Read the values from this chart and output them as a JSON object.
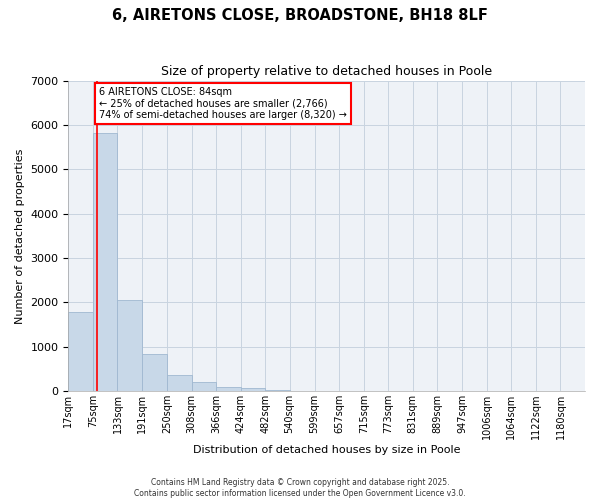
{
  "title": "6, AIRETONS CLOSE, BROADSTONE, BH18 8LF",
  "subtitle": "Size of property relative to detached houses in Poole",
  "xlabel": "Distribution of detached houses by size in Poole",
  "ylabel": "Number of detached properties",
  "bar_labels": [
    "17sqm",
    "75sqm",
    "133sqm",
    "191sqm",
    "250sqm",
    "308sqm",
    "366sqm",
    "424sqm",
    "482sqm",
    "540sqm",
    "599sqm",
    "657sqm",
    "715sqm",
    "773sqm",
    "831sqm",
    "889sqm",
    "947sqm",
    "1006sqm",
    "1064sqm",
    "1122sqm",
    "1180sqm"
  ],
  "bar_values": [
    1780,
    5820,
    2060,
    840,
    360,
    215,
    100,
    65,
    30,
    10,
    5,
    2,
    0,
    0,
    0,
    0,
    0,
    0,
    0,
    0,
    0
  ],
  "bar_color": "#c8d8e8",
  "bar_edge_color": "#a0b8d0",
  "ylim": [
    0,
    7000
  ],
  "yticks": [
    0,
    1000,
    2000,
    3000,
    4000,
    5000,
    6000,
    7000
  ],
  "property_size_sqm": 84,
  "property_label_line1": "6 AIRETONS CLOSE: 84sqm",
  "property_label_line2": "← 25% of detached houses are smaller (2,766)",
  "property_label_line3": "74% of semi-detached houses are larger (8,320) →",
  "red_line_x": 84,
  "bin_starts": [
    17,
    75,
    133,
    191,
    250,
    308,
    366,
    424,
    482,
    540,
    599,
    657,
    715,
    773,
    831,
    889,
    947,
    1006,
    1064,
    1122,
    1180
  ],
  "background_color": "#eef2f7",
  "grid_color": "#c8d4e0",
  "footnote1": "Contains HM Land Registry data © Crown copyright and database right 2025.",
  "footnote2": "Contains public sector information licensed under the Open Government Licence v3.0."
}
